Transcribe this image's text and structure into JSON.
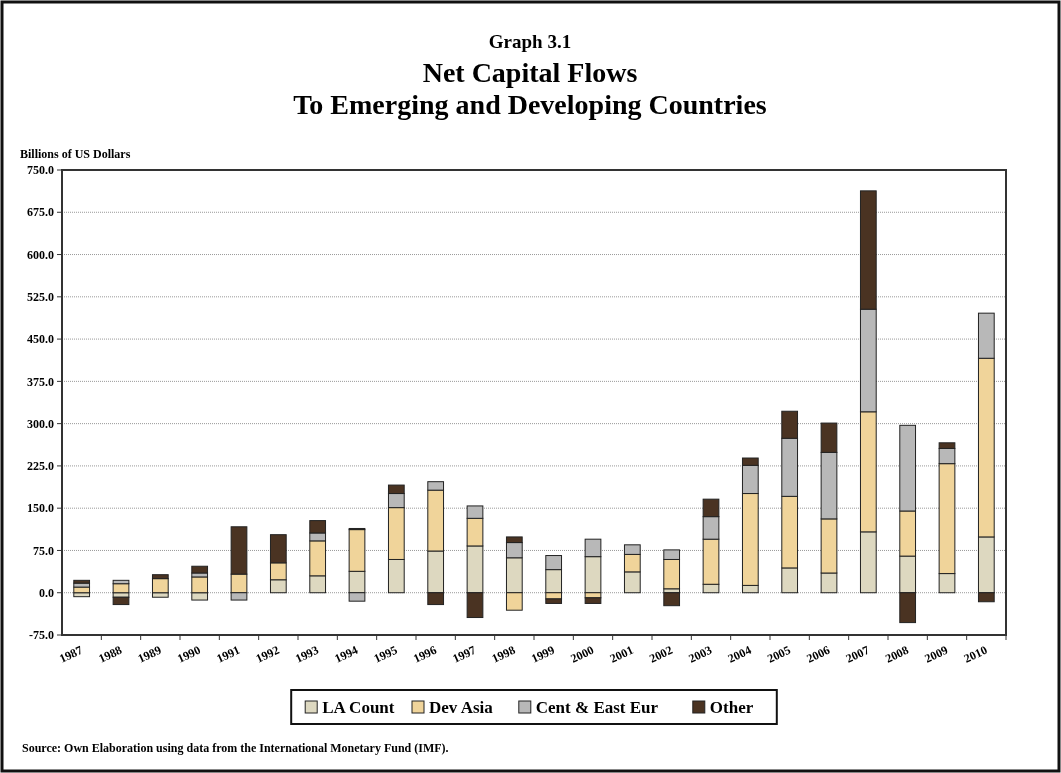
{
  "chart_data": {
    "type": "bar",
    "stacked": true,
    "title": "Graph 3.1",
    "subtitle": "Net Capital Flows\nTo Emerging and Developing Countries",
    "ylabel": "Billions of US Dollars",
    "annotations": [
      "Source: Own Elaboration using  data from the International  Monetary Fund (IMF)."
    ],
    "categories": [
      "1987",
      "1988",
      "1989",
      "1990",
      "1991",
      "1992",
      "1993",
      "1994",
      "1995",
      "1996",
      "1997",
      "1998",
      "1999",
      "2000",
      "2001",
      "2002",
      "2003",
      "2004",
      "2005",
      "2006",
      "2007",
      "2008",
      "2009",
      "2010"
    ],
    "series": [
      {
        "name": "LA Count",
        "color": "#ddd8c0",
        "values": [
          -7,
          -8,
          -8,
          -13,
          null,
          23,
          30,
          38,
          59,
          74,
          83,
          62,
          41,
          64,
          37,
          7,
          15,
          13,
          44,
          35,
          108,
          65,
          34,
          99
        ]
      },
      {
        "name": "Dev Asia",
        "color": "#f0d49a",
        "values": [
          10,
          16,
          25,
          28,
          33,
          30,
          62,
          74,
          92,
          108,
          49,
          -31,
          -11,
          -9,
          31,
          52,
          80,
          163,
          127,
          96,
          213,
          80,
          195,
          317
        ]
      },
      {
        "name": "Cent & East Eur",
        "color": "#b8b8b8",
        "values": [
          7,
          6,
          0,
          7,
          -13,
          0,
          14,
          -15,
          25,
          15,
          22,
          27,
          25,
          31,
          17,
          17,
          40,
          50,
          103,
          118,
          182,
          152,
          27,
          80
        ]
      },
      {
        "name": "Other",
        "color": "#4a3322",
        "values": [
          5,
          -13,
          7,
          12,
          84,
          50,
          22,
          2,
          15,
          -21,
          -44,
          10,
          -8,
          -10,
          0,
          -23,
          31,
          13,
          48,
          52,
          210,
          -53,
          10,
          -16
        ]
      }
    ],
    "ylim": [
      -75,
      750
    ],
    "yticks": [
      {
        "value": -75,
        "label": "-75.0"
      },
      {
        "value": 0,
        "label": "0.0"
      },
      {
        "value": 75,
        "label": "75.0"
      },
      {
        "value": 150,
        "label": "150.0"
      },
      {
        "value": 225,
        "label": "225.0"
      },
      {
        "value": 300,
        "label": "300.0"
      },
      {
        "value": 375,
        "label": "375.0"
      },
      {
        "value": 450,
        "label": "450.0"
      },
      {
        "value": 525,
        "label": "525.0"
      },
      {
        "value": 600,
        "label": "600.0"
      },
      {
        "value": 675,
        "label": "675.0"
      },
      {
        "value": 750,
        "label": "750.0"
      }
    ],
    "grid": "y",
    "legend": "bottom"
  }
}
